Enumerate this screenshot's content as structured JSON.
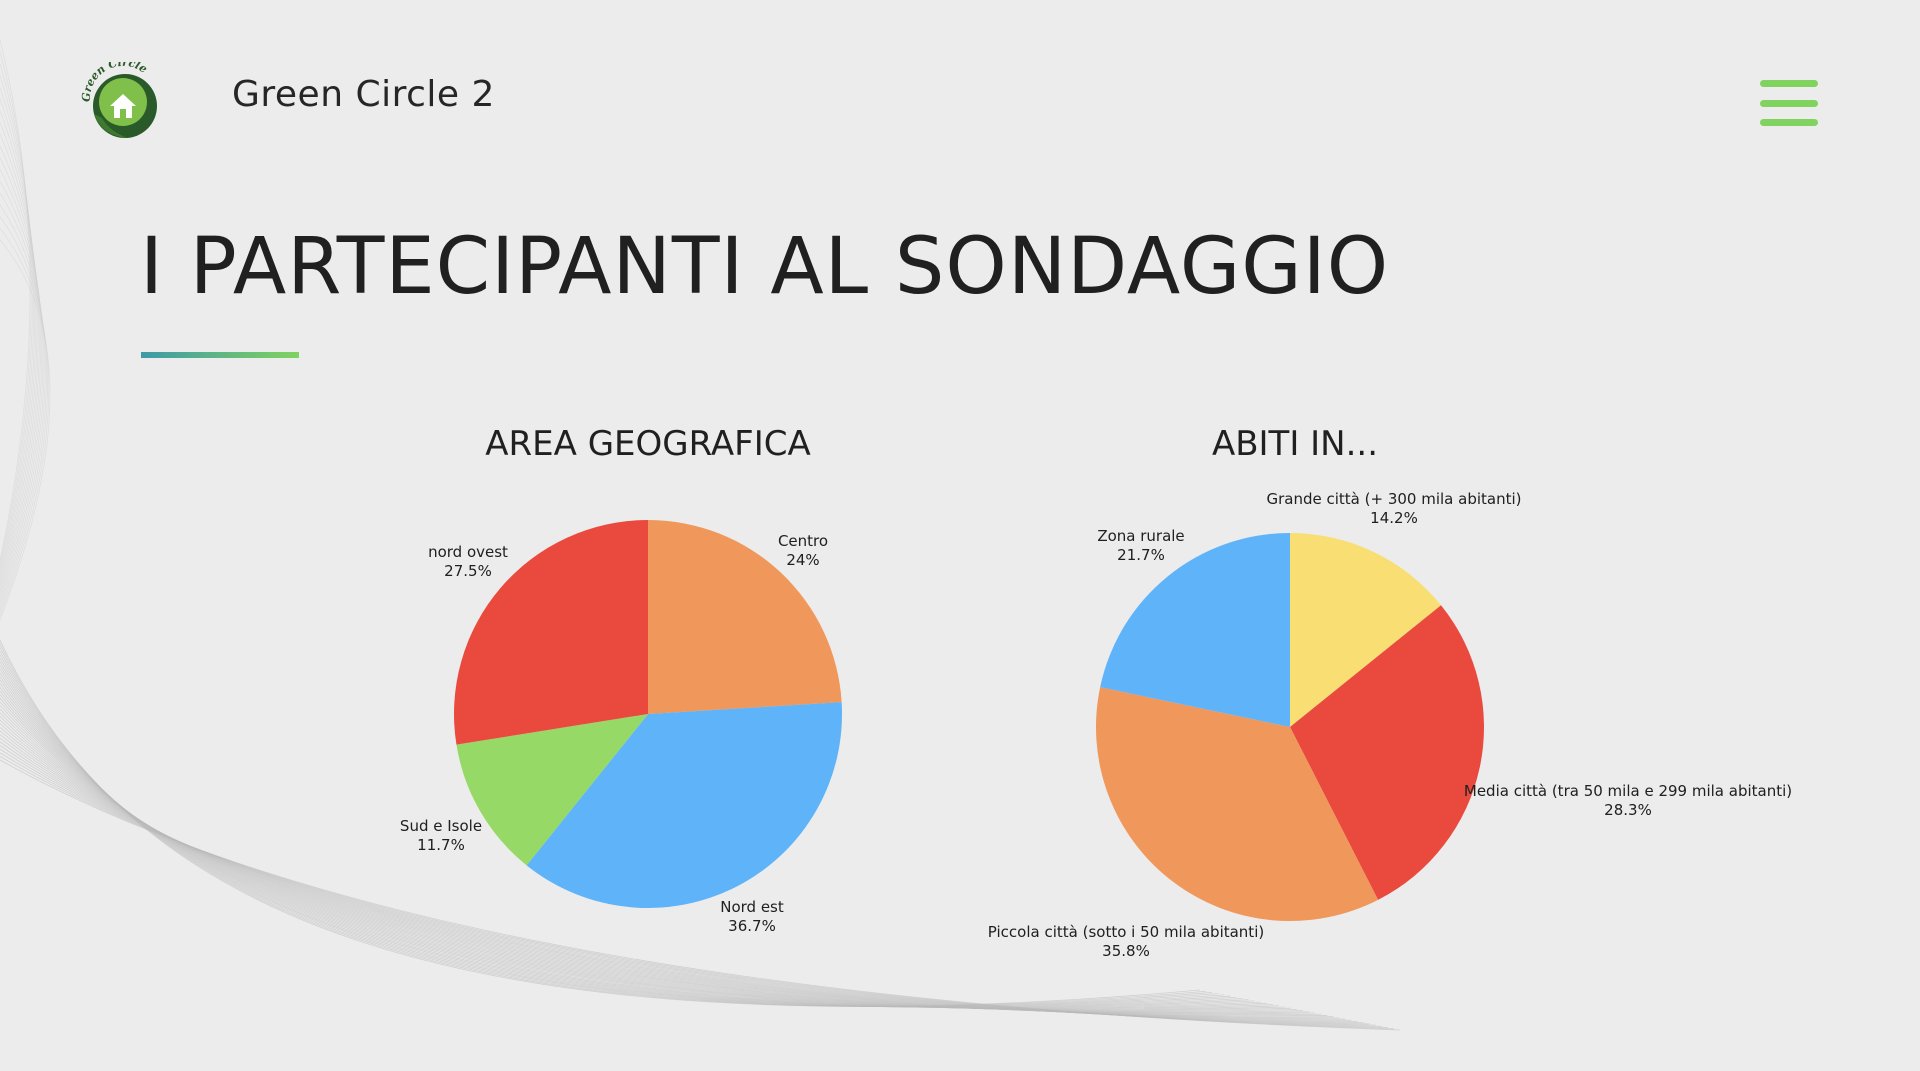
{
  "header": {
    "brand": "Green Circle 2",
    "logo_text": "Green Circle"
  },
  "page_title": "I PARTECIPANTI AL SONDAGGIO",
  "colors": {
    "accent": "#7fd35e",
    "rule_start": "#3d9aa8",
    "rule_end": "#7fd35e"
  },
  "chart_data": [
    {
      "type": "pie",
      "title": "AREA GEOGRAFICA",
      "slices": [
        {
          "label": "Centro",
          "value": 24,
          "display": "24%",
          "color": "#f0975b"
        },
        {
          "label": "Nord est",
          "value": 36.7,
          "display": "36.7%",
          "color": "#5fb3f9"
        },
        {
          "label": "Sud e Isole",
          "value": 11.7,
          "display": "11.7%",
          "color": "#97d967"
        },
        {
          "label": "nord ovest",
          "value": 27.5,
          "display": "27.5%",
          "color": "#ea4a3e"
        }
      ]
    },
    {
      "type": "pie",
      "title": "ABITI IN...",
      "slices": [
        {
          "label": "Grande città (+ 300 mila abitanti)",
          "value": 14.2,
          "display": "14.2%",
          "color": "#f9de73"
        },
        {
          "label": "Media città (tra 50 mila e 299 mila abitanti)",
          "value": 28.3,
          "display": "28.3%",
          "color": "#ea4a3e"
        },
        {
          "label": "Piccola città (sotto i 50 mila abitanti)",
          "value": 35.8,
          "display": "35.8%",
          "color": "#f0975b"
        },
        {
          "label": "Zona rurale",
          "value": 21.7,
          "display": "21.7%",
          "color": "#5fb3f9"
        }
      ]
    }
  ]
}
